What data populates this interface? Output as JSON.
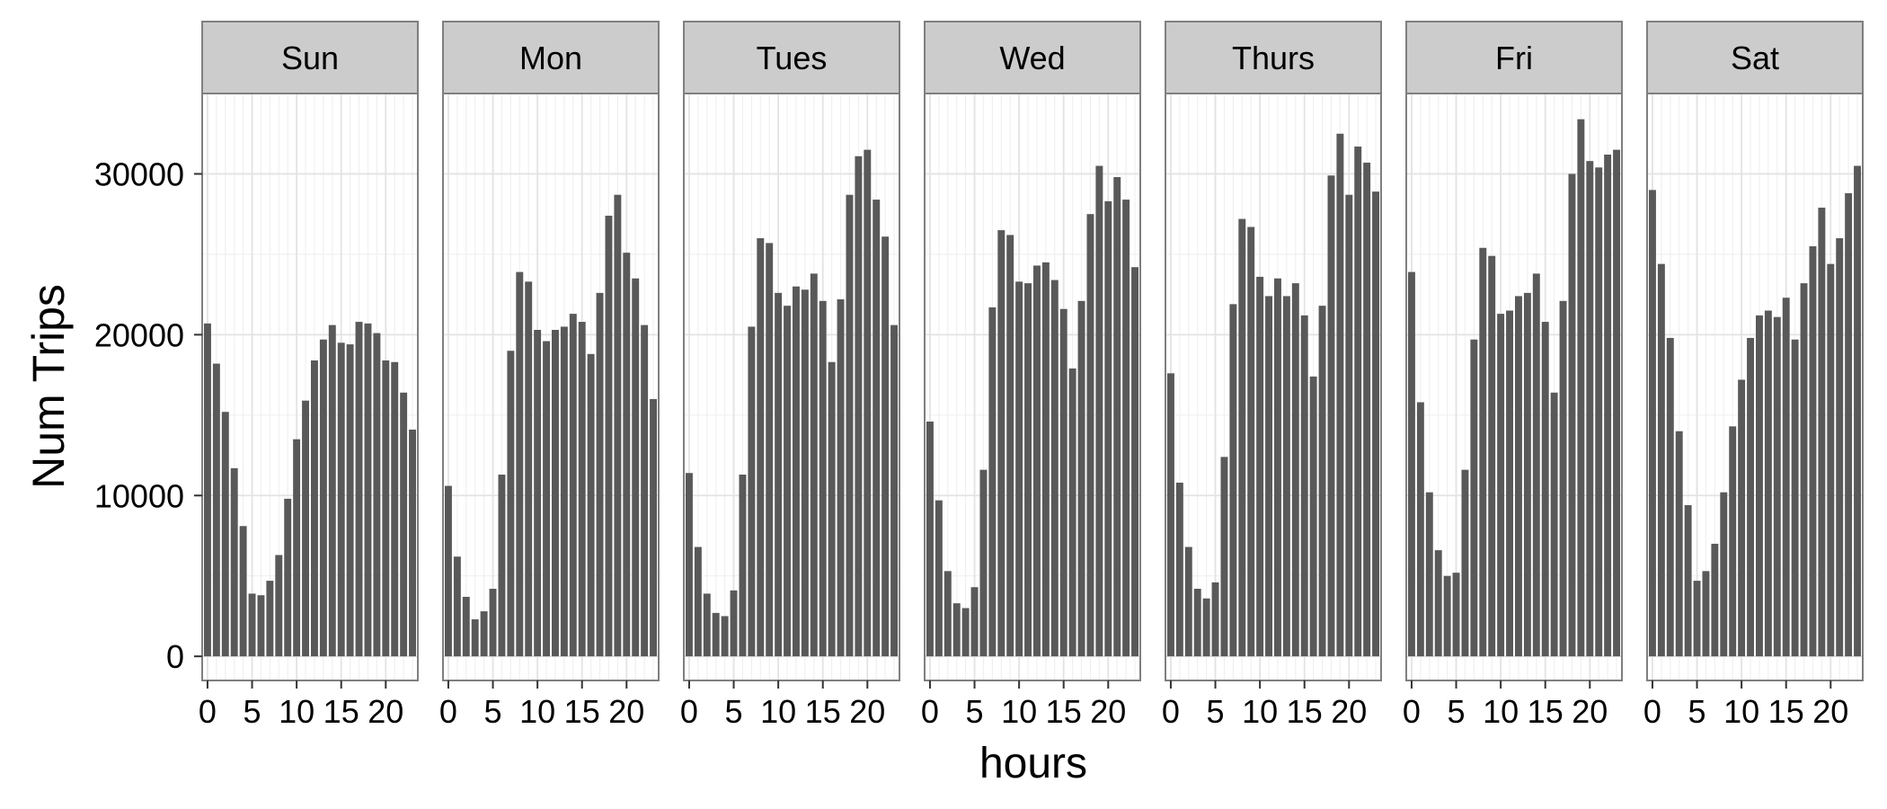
{
  "chart_data": {
    "type": "bar",
    "xlabel": "hours",
    "ylabel": "Num Trips",
    "ylim": [
      -1500,
      35000
    ],
    "xlim": [
      -0.6,
      23.6
    ],
    "y_ticks": [
      0,
      10000,
      20000,
      30000
    ],
    "x_ticks": [
      0,
      5,
      10,
      15,
      20
    ],
    "x_tick_labels": [
      "0",
      "5",
      "10",
      "15",
      "20"
    ],
    "y_tick_labels": [
      "0",
      "10000",
      "20000",
      "30000"
    ],
    "grid": true,
    "facet_strip_color": "#cccccc",
    "bar_color": "#595959",
    "hours": [
      0,
      1,
      2,
      3,
      4,
      5,
      6,
      7,
      8,
      9,
      10,
      11,
      12,
      13,
      14,
      15,
      16,
      17,
      18,
      19,
      20,
      21,
      22,
      23
    ],
    "panels": [
      {
        "name": "Sun",
        "values": [
          20700,
          18200,
          15200,
          11700,
          8100,
          3900,
          3800,
          4700,
          6300,
          9800,
          13500,
          15900,
          18400,
          19700,
          20600,
          19500,
          19400,
          20800,
          20700,
          20100,
          18400,
          18300,
          16400,
          14100
        ]
      },
      {
        "name": "Mon",
        "values": [
          10600,
          6200,
          3700,
          2300,
          2800,
          4200,
          11300,
          19000,
          23900,
          23300,
          20300,
          19600,
          20300,
          20500,
          21300,
          20800,
          18800,
          22600,
          27400,
          28700,
          25100,
          23500,
          20600,
          16000
        ]
      },
      {
        "name": "Tues",
        "values": [
          11400,
          6800,
          3900,
          2700,
          2500,
          4100,
          11300,
          20500,
          26000,
          25700,
          22600,
          21800,
          23000,
          22800,
          23800,
          22100,
          18300,
          22200,
          28700,
          31100,
          31500,
          28400,
          26100,
          20600
        ]
      },
      {
        "name": "Wed",
        "values": [
          14600,
          9700,
          5300,
          3300,
          3000,
          4300,
          11600,
          21700,
          26500,
          26200,
          23300,
          23200,
          24300,
          24500,
          23400,
          21600,
          17900,
          22100,
          27500,
          30500,
          28300,
          29800,
          28400,
          24200
        ]
      },
      {
        "name": "Thurs",
        "values": [
          17600,
          10800,
          6800,
          4200,
          3600,
          4600,
          12400,
          21900,
          27200,
          26700,
          23600,
          22400,
          23500,
          22400,
          23200,
          21200,
          17400,
          21800,
          29900,
          32500,
          28700,
          31700,
          30700,
          28900
        ]
      },
      {
        "name": "Fri",
        "values": [
          23900,
          15800,
          10200,
          6600,
          5000,
          5200,
          11600,
          19700,
          25400,
          24900,
          21300,
          21500,
          22400,
          22600,
          23800,
          20800,
          16400,
          22100,
          30000,
          33400,
          30800,
          30400,
          31200,
          31500
        ]
      },
      {
        "name": "Sat",
        "values": [
          29000,
          24400,
          19800,
          14000,
          9400,
          4700,
          5300,
          7000,
          10200,
          14300,
          17200,
          19800,
          21200,
          21500,
          21100,
          22300,
          19700,
          23200,
          25500,
          27900,
          24400,
          26000,
          28800,
          30500
        ]
      }
    ]
  }
}
